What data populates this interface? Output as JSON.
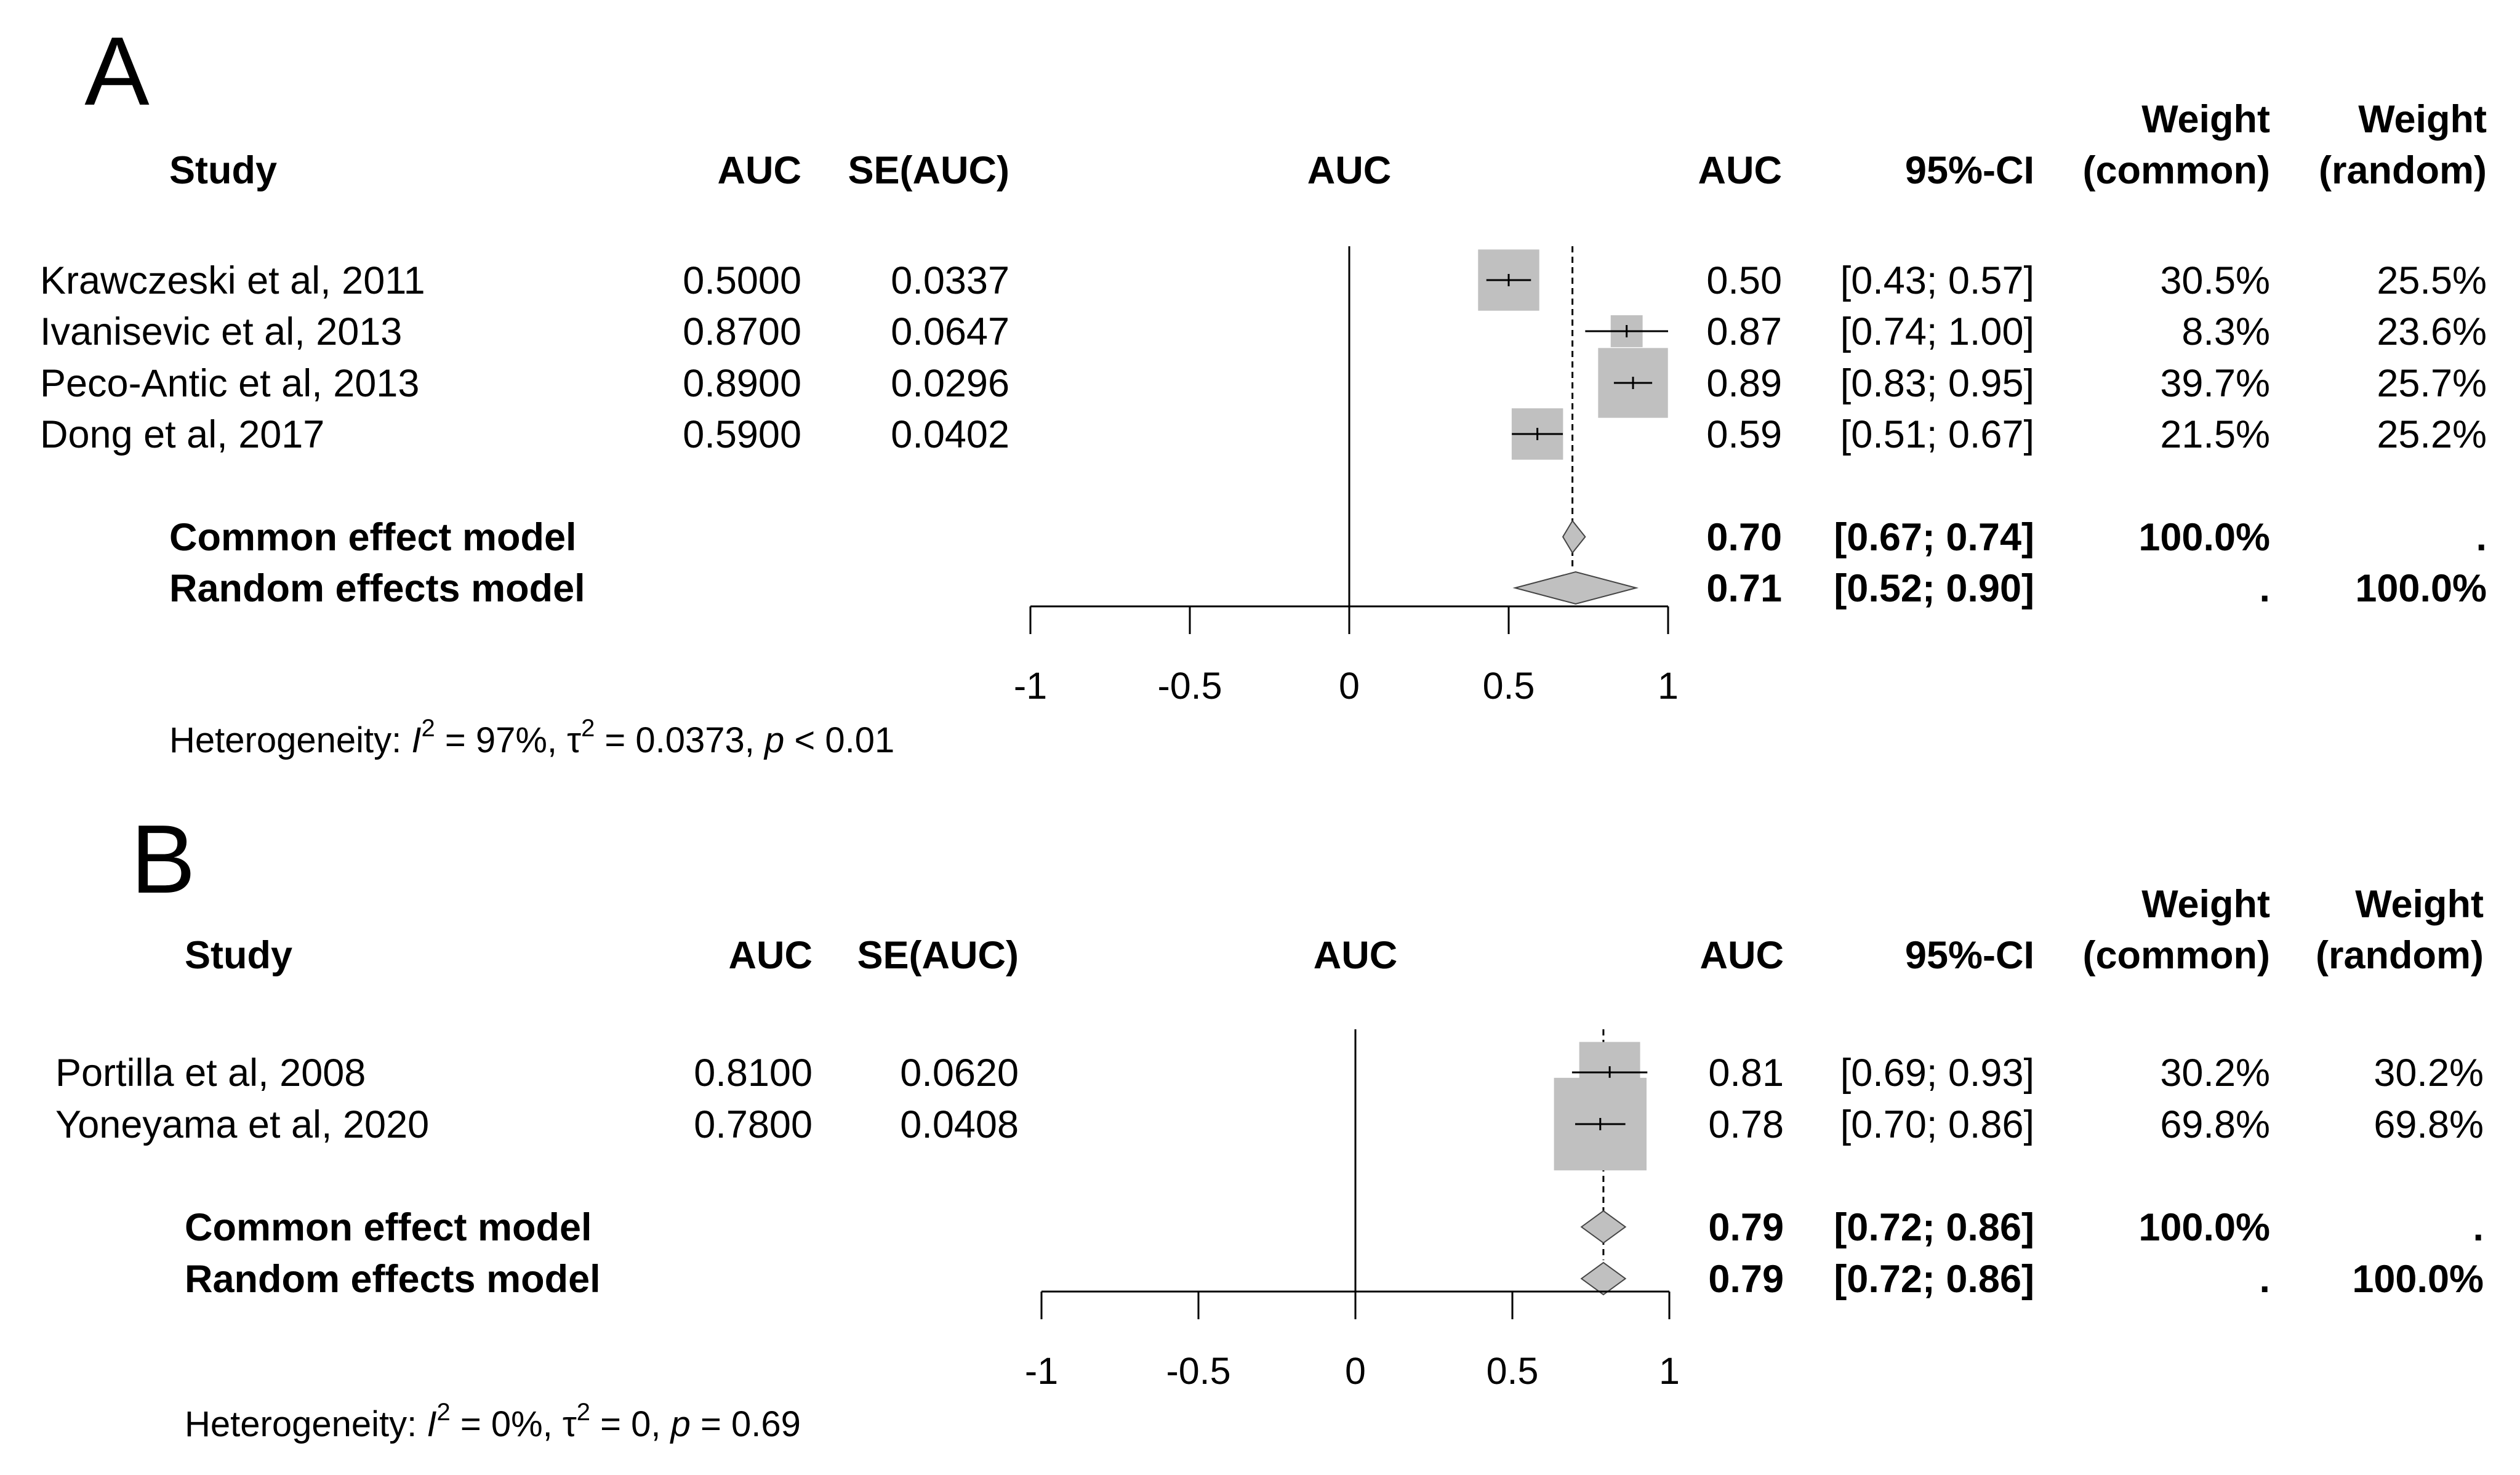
{
  "chart_data": [
    {
      "type": "forest",
      "panel": "A",
      "columns": {
        "study": "Study",
        "auc": "AUC",
        "se": "SE(AUC)",
        "plot": "AUC",
        "est": "AUC",
        "ci": "95%-CI",
        "w_common_1": "Weight",
        "w_common_2": "(common)",
        "w_random_1": "Weight",
        "w_random_2": "(random)"
      },
      "studies": [
        {
          "name": "Krawczeski et al, 2011",
          "auc": "0.5000",
          "se": "0.0337",
          "est": "0.50",
          "ci": "[0.43; 0.57]",
          "w_common": "30.5%",
          "w_random": "25.5%",
          "x": 0.5,
          "lo": 0.43,
          "hi": 0.57,
          "weight": 30.5
        },
        {
          "name": "Ivanisevic et al, 2013",
          "auc": "0.8700",
          "se": "0.0647",
          "est": "0.87",
          "ci": "[0.74; 1.00]",
          "w_common": "8.3%",
          "w_random": "23.6%",
          "x": 0.87,
          "lo": 0.74,
          "hi": 1.0,
          "weight": 8.3
        },
        {
          "name": "Peco-Antic et al, 2013",
          "auc": "0.8900",
          "se": "0.0296",
          "est": "0.89",
          "ci": "[0.83; 0.95]",
          "w_common": "39.7%",
          "w_random": "25.7%",
          "x": 0.89,
          "lo": 0.83,
          "hi": 0.95,
          "weight": 39.7
        },
        {
          "name": "Dong et al, 2017",
          "auc": "0.5900",
          "se": "0.0402",
          "est": "0.59",
          "ci": "[0.51; 0.67]",
          "w_common": "21.5%",
          "w_random": "25.2%",
          "x": 0.59,
          "lo": 0.51,
          "hi": 0.67,
          "weight": 21.5
        }
      ],
      "models": [
        {
          "name": "Common effect model",
          "est": "0.70",
          "ci": "[0.67; 0.74]",
          "w_common": "100.0%",
          "w_random": ".",
          "x": 0.7,
          "lo": 0.67,
          "hi": 0.74
        },
        {
          "name": "Random effects model",
          "est": "0.71",
          "ci": "[0.52; 0.90]",
          "w_common": ".",
          "w_random": "100.0%",
          "x": 0.71,
          "lo": 0.52,
          "hi": 0.9
        }
      ],
      "xlim": [
        -1,
        1
      ],
      "ticks": [
        "-1",
        "-0.5",
        "0",
        "0.5",
        "1"
      ],
      "heterogeneity": {
        "prefix": "Heterogeneity: ",
        "i2": "I",
        "i2_val": " = 97%, ",
        "tau": "τ",
        "tau_val": " = 0.0373, ",
        "p": "p",
        "p_val": " < 0.01"
      }
    },
    {
      "type": "forest",
      "panel": "B",
      "columns": {
        "study": "Study",
        "auc": "AUC",
        "se": "SE(AUC)",
        "plot": "AUC",
        "est": "AUC",
        "ci": "95%-CI",
        "w_common_1": "Weight",
        "w_common_2": "(common)",
        "w_random_1": "Weight",
        "w_random_2": "(random)"
      },
      "studies": [
        {
          "name": "Portilla et al, 2008",
          "auc": "0.8100",
          "se": "0.0620",
          "est": "0.81",
          "ci": "[0.69; 0.93]",
          "w_common": "30.2%",
          "w_random": "30.2%",
          "x": 0.81,
          "lo": 0.69,
          "hi": 0.93,
          "weight": 30.2
        },
        {
          "name": "Yoneyama et al, 2020",
          "auc": "0.7800",
          "se": "0.0408",
          "est": "0.78",
          "ci": "[0.70; 0.86]",
          "w_common": "69.8%",
          "w_random": "69.8%",
          "x": 0.78,
          "lo": 0.7,
          "hi": 0.86,
          "weight": 69.8
        }
      ],
      "models": [
        {
          "name": "Common effect model",
          "est": "0.79",
          "ci": "[0.72; 0.86]",
          "w_common": "100.0%",
          "w_random": ".",
          "x": 0.79,
          "lo": 0.72,
          "hi": 0.86
        },
        {
          "name": "Random effects model",
          "est": "0.79",
          "ci": "[0.72; 0.86]",
          "w_common": ".",
          "w_random": "100.0%",
          "x": 0.79,
          "lo": 0.72,
          "hi": 0.86
        }
      ],
      "xlim": [
        -1,
        1
      ],
      "ticks": [
        "-1",
        "-0.5",
        "0",
        "0.5",
        "1"
      ],
      "heterogeneity": {
        "prefix": "Heterogeneity: ",
        "i2": "I",
        "i2_val": " = 0%, ",
        "tau": "τ",
        "tau_val": " = 0, ",
        "p": "p",
        "p_val": " = 0.69"
      }
    }
  ],
  "colors": {
    "square": "#c0c0c0",
    "diamond": "#c0c0c0",
    "line": "#000000"
  }
}
